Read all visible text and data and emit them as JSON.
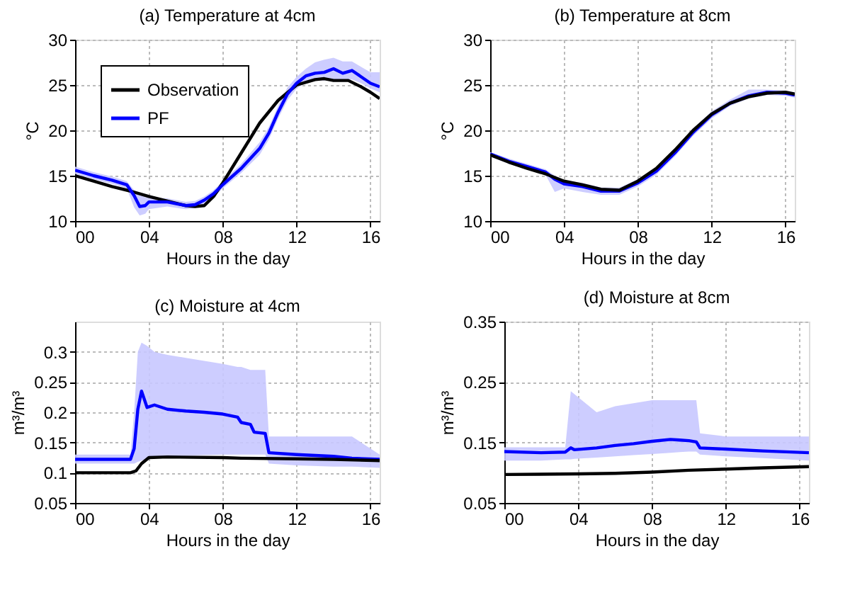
{
  "chart_data": [
    {
      "type": "line",
      "title": "(a) Temperature at 4cm",
      "xlabel": "Hours in the day",
      "ylabel": "°C",
      "xlim": [
        0,
        16.5
      ],
      "xticks": [
        {
          "value": 0,
          "label": "00"
        },
        {
          "value": 4,
          "label": "04"
        },
        {
          "value": 8,
          "label": "08"
        },
        12,
        16
      ],
      "ylim": [
        10,
        30
      ],
      "yticks": [
        10,
        15,
        20,
        25,
        30
      ],
      "grid": true,
      "legend": "top left",
      "line_style": "solid",
      "marker": "none",
      "series": [
        {
          "name": "Observation",
          "color": "#000000",
          "x": [
            0,
            1,
            2,
            3,
            4,
            5,
            6,
            6.5,
            7,
            7.5,
            8,
            9,
            10,
            11,
            12,
            13,
            13.5,
            14,
            14.8,
            15.5,
            16,
            16.5
          ],
          "values": [
            15.0,
            14.4,
            13.8,
            13.3,
            12.7,
            12.2,
            11.7,
            11.6,
            11.7,
            12.7,
            14.2,
            17.5,
            20.8,
            23.3,
            25.0,
            25.6,
            25.7,
            25.5,
            25.5,
            24.8,
            24.2,
            23.5
          ]
        },
        {
          "name": "PF",
          "color": "#0000ff",
          "x": [
            0,
            1,
            2,
            2.8,
            3.2,
            3.5,
            3.8,
            4,
            5,
            6,
            6.5,
            7,
            7.5,
            8,
            9,
            10,
            10.5,
            11,
            11.5,
            12,
            12.5,
            13,
            13.5,
            14,
            14.5,
            15,
            15.5,
            16,
            16.5
          ],
          "values": [
            15.6,
            15.0,
            14.5,
            14.0,
            12.8,
            11.6,
            11.7,
            12.1,
            12.1,
            11.7,
            11.8,
            12.3,
            13.0,
            14.0,
            15.8,
            18.0,
            19.7,
            22.0,
            24.0,
            25.2,
            26.0,
            26.3,
            26.4,
            26.8,
            26.3,
            26.6,
            25.9,
            25.2,
            24.8
          ],
          "lower": [
            15.2,
            14.6,
            14.1,
            13.6,
            11.5,
            10.6,
            10.8,
            11.3,
            11.6,
            11.3,
            11.4,
            11.9,
            12.6,
            13.6,
            15.3,
            17.3,
            19.0,
            21.3,
            23.3,
            24.6,
            25.3,
            25.5,
            25.5,
            25.6,
            25.5,
            25.6,
            25.2,
            24.6,
            24.2
          ],
          "upper": [
            16.0,
            15.4,
            14.9,
            14.4,
            13.4,
            13.0,
            12.6,
            12.6,
            12.5,
            12.1,
            12.2,
            12.7,
            13.4,
            14.4,
            16.3,
            18.7,
            20.4,
            22.7,
            24.7,
            25.9,
            26.8,
            27.5,
            27.8,
            28.0,
            27.6,
            27.6,
            27.0,
            26.4,
            26.4
          ]
        }
      ]
    },
    {
      "type": "line",
      "title": "(b) Temperature at 8cm",
      "xlabel": "Hours in the day",
      "ylabel": "°C",
      "xlim": [
        0,
        16.5
      ],
      "xticks": [
        {
          "value": 0,
          "label": "00"
        },
        {
          "value": 4,
          "label": "04"
        },
        {
          "value": 8,
          "label": "08"
        },
        12,
        16
      ],
      "ylim": [
        10,
        30
      ],
      "yticks": [
        10,
        15,
        20,
        25,
        30
      ],
      "grid": true,
      "line_style": "solid",
      "marker": "none",
      "series": [
        {
          "color": "#0000ff",
          "x": [
            0,
            1,
            2,
            3,
            3.5,
            4,
            5,
            6,
            7,
            8,
            9,
            10,
            11,
            12,
            13,
            14,
            15,
            16,
            16.5
          ],
          "values": [
            17.4,
            16.6,
            16.0,
            15.4,
            14.6,
            14.1,
            13.8,
            13.3,
            13.3,
            14.2,
            15.5,
            17.5,
            19.8,
            21.7,
            23.0,
            23.8,
            24.2,
            24.1,
            23.9
          ],
          "lower": [
            17.1,
            16.3,
            15.7,
            15.1,
            13.2,
            13.6,
            13.2,
            12.9,
            12.9,
            13.8,
            15.1,
            17.1,
            19.4,
            21.3,
            22.7,
            23.5,
            23.9,
            23.8,
            23.6
          ],
          "upper": [
            17.6,
            16.9,
            16.3,
            15.7,
            15.0,
            14.5,
            14.2,
            13.7,
            13.7,
            14.6,
            15.9,
            17.9,
            20.2,
            22.1,
            23.4,
            24.5,
            24.5,
            24.4,
            24.2
          ]
        },
        {
          "color": "#000000",
          "x": [
            0,
            1,
            2,
            3,
            4,
            5,
            6,
            7,
            8,
            9,
            10,
            11,
            12,
            13,
            14,
            15,
            16,
            16.5
          ],
          "values": [
            17.3,
            16.5,
            15.8,
            15.2,
            14.4,
            14.0,
            13.5,
            13.4,
            14.4,
            15.8,
            17.8,
            20.0,
            21.8,
            23.0,
            23.7,
            24.1,
            24.2,
            24.0
          ]
        }
      ]
    },
    {
      "type": "line",
      "title": "(c) Moisture at 4cm",
      "xlabel": "Hours in the day",
      "ylabel": "m³/m³",
      "xlim": [
        0,
        16.5
      ],
      "xticks": [
        {
          "value": 0,
          "label": "00"
        },
        {
          "value": 4,
          "label": "04"
        },
        {
          "value": 8,
          "label": "08"
        },
        12,
        16
      ],
      "ylim": [
        0.05,
        0.35
      ],
      "yticks": [
        0.05,
        0.1,
        0.15,
        0.2,
        0.25,
        0.3
      ],
      "grid": true,
      "line_style": "solid",
      "marker": "none",
      "series": [
        {
          "color": "#0000ff",
          "x": [
            0,
            3,
            3.2,
            3.4,
            3.6,
            3.9,
            4.3,
            5,
            6,
            7,
            8,
            8.8,
            9,
            9.5,
            9.7,
            10.3,
            10.5,
            12,
            14,
            15,
            16.5
          ],
          "values": [
            0.122,
            0.122,
            0.14,
            0.205,
            0.235,
            0.208,
            0.212,
            0.205,
            0.202,
            0.2,
            0.197,
            0.192,
            0.183,
            0.18,
            0.167,
            0.165,
            0.133,
            0.13,
            0.127,
            0.124,
            0.122
          ],
          "lower": [
            0.115,
            0.115,
            0.115,
            0.118,
            0.12,
            0.122,
            0.125,
            0.127,
            0.128,
            0.129,
            0.13,
            0.13,
            0.13,
            0.13,
            0.13,
            0.13,
            0.115,
            0.112,
            0.11,
            0.11,
            0.108
          ],
          "upper": [
            0.13,
            0.13,
            0.2,
            0.3,
            0.315,
            0.31,
            0.3,
            0.295,
            0.29,
            0.285,
            0.28,
            0.275,
            0.275,
            0.27,
            0.27,
            0.27,
            0.16,
            0.16,
            0.16,
            0.16,
            0.13
          ]
        },
        {
          "color": "#000000",
          "x": [
            0,
            3,
            3.3,
            3.6,
            4,
            5,
            8,
            9,
            12,
            14,
            16.5
          ],
          "values": [
            0.1,
            0.1,
            0.103,
            0.115,
            0.125,
            0.126,
            0.125,
            0.124,
            0.123,
            0.122,
            0.12
          ]
        }
      ]
    },
    {
      "type": "line",
      "title": "(d) Moisture at 8cm",
      "xlabel": "Hours in the day",
      "ylabel": "m³/m³",
      "xlim": [
        0,
        16.5
      ],
      "xticks": [
        {
          "value": 0,
          "label": "00"
        },
        {
          "value": 4,
          "label": "04"
        },
        {
          "value": 8,
          "label": "08"
        },
        12,
        16
      ],
      "ylim": [
        0.05,
        0.35
      ],
      "yticks": [
        0.05,
        0.15,
        0.25,
        0.35
      ],
      "grid": true,
      "line_style": "solid",
      "marker": "none",
      "series": [
        {
          "color": "#0000ff",
          "x": [
            0,
            2,
            3.3,
            3.6,
            3.8,
            5,
            6,
            7,
            8,
            9,
            9.5,
            10,
            10.4,
            10.6,
            12,
            14,
            16.5
          ],
          "values": [
            0.135,
            0.133,
            0.134,
            0.141,
            0.138,
            0.141,
            0.145,
            0.148,
            0.152,
            0.155,
            0.154,
            0.153,
            0.151,
            0.141,
            0.139,
            0.136,
            0.133
          ],
          "lower": [
            0.12,
            0.12,
            0.122,
            0.122,
            0.123,
            0.125,
            0.127,
            0.129,
            0.131,
            0.133,
            0.134,
            0.135,
            0.135,
            0.13,
            0.127,
            0.124,
            0.12
          ],
          "upper": [
            0.142,
            0.142,
            0.142,
            0.235,
            0.23,
            0.2,
            0.21,
            0.215,
            0.22,
            0.22,
            0.22,
            0.22,
            0.22,
            0.165,
            0.16,
            0.16,
            0.16
          ]
        },
        {
          "color": "#000000",
          "x": [
            0,
            4,
            6,
            8,
            10,
            12,
            14,
            16.5
          ],
          "values": [
            0.097,
            0.098,
            0.099,
            0.101,
            0.104,
            0.106,
            0.108,
            0.11
          ]
        }
      ]
    }
  ]
}
